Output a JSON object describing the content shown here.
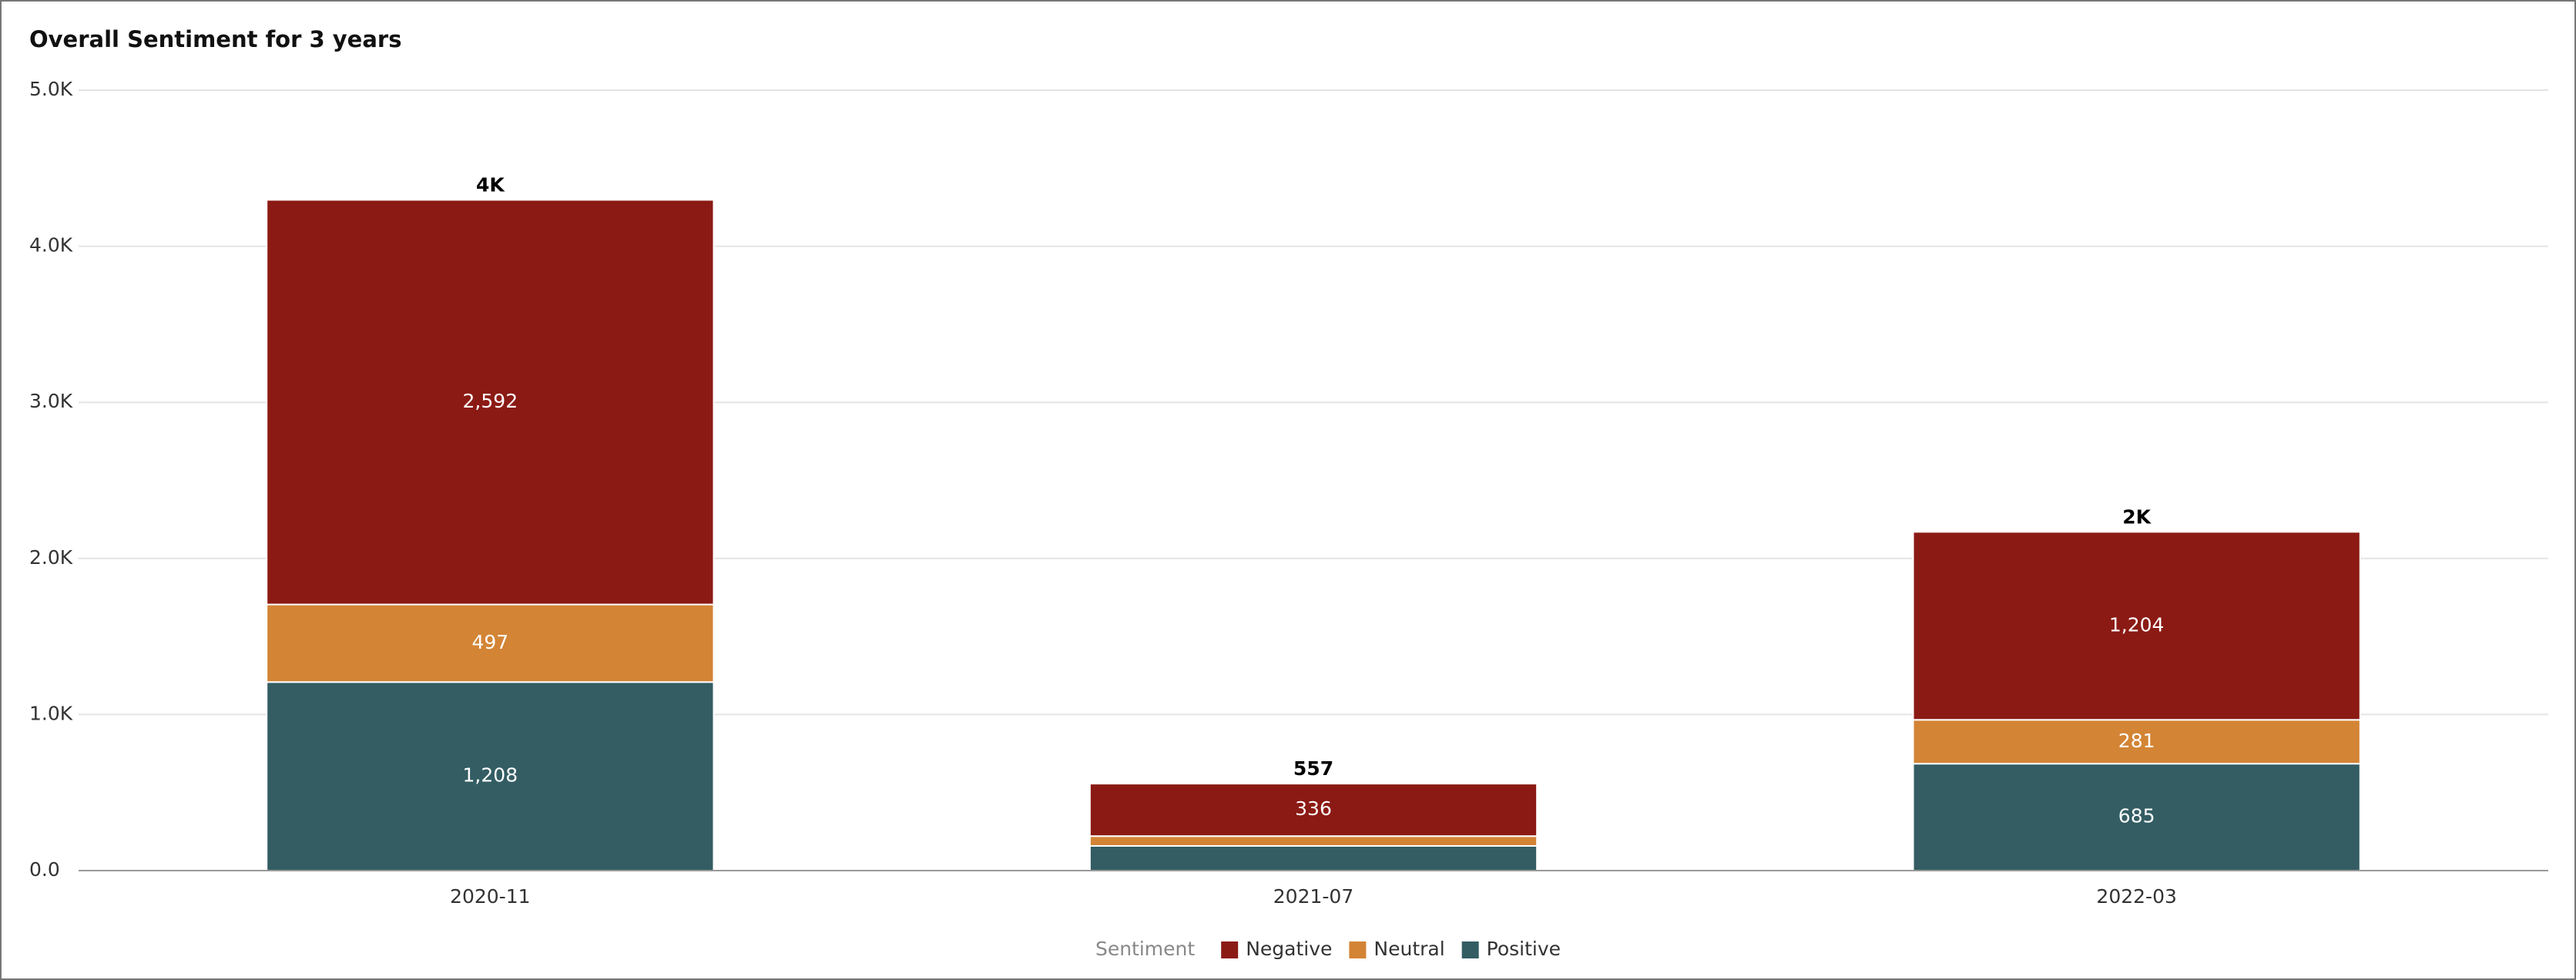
{
  "chart_data": {
    "type": "stacked-bar",
    "title": "Overall Sentiment for 3 years",
    "categories": [
      "2020-11",
      "2021-07",
      "2022-03"
    ],
    "series": [
      {
        "name": "Positive",
        "color": "#335d63",
        "values": [
          1208,
          158,
          685
        ],
        "value_labels": [
          "1,208",
          null,
          "685"
        ]
      },
      {
        "name": "Neutral",
        "color": "#d38435",
        "values": [
          497,
          63,
          281
        ],
        "value_labels": [
          "497",
          null,
          "281"
        ]
      },
      {
        "name": "Negative",
        "color": "#8b1a14",
        "values": [
          2592,
          336,
          1204
        ],
        "value_labels": [
          "2,592",
          "336",
          "1,204"
        ]
      }
    ],
    "total_labels": [
      "4K",
      "557",
      "2K"
    ],
    "legend_title": "Sentiment",
    "legend": "bottom",
    "ylim": [
      0,
      5000
    ],
    "yticks": [
      {
        "value": 0,
        "label": "0.0"
      },
      {
        "value": 1000,
        "label": "1.0K"
      },
      {
        "value": 2000,
        "label": "2.0K"
      },
      {
        "value": 3000,
        "label": "3.0K"
      },
      {
        "value": 4000,
        "label": "4.0K"
      },
      {
        "value": 5000,
        "label": "5.0K"
      }
    ],
    "grid": true
  }
}
